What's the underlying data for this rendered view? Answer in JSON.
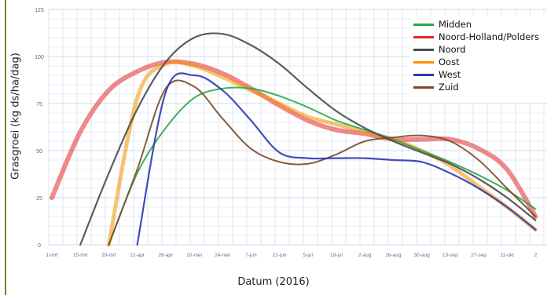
{
  "chart_data": {
    "type": "line",
    "title": "",
    "xlabel": "Datum (2016)",
    "ylabel": "Grasgroei (kg ds/ha/dag)",
    "ylim": [
      0,
      125
    ],
    "yticks": [
      0,
      25,
      50,
      75,
      100,
      125
    ],
    "categories": [
      "1-mrt",
      "15-mrt",
      "29-mrt",
      "12-apr",
      "26-apr",
      "10-mei",
      "24-mei",
      "7-jun",
      "21-jun",
      "5-jul",
      "19-jul",
      "2-aug",
      "16-aug",
      "30-aug",
      "13-sep",
      "27-sep",
      "11-okt",
      "2"
    ],
    "grid": true,
    "legend_position": "top-right",
    "series": [
      {
        "name": "Midden",
        "color": "#2aa84a",
        "values": [
          null,
          null,
          0,
          38,
          62,
          78,
          83,
          83,
          79,
          73,
          66,
          61,
          56,
          50,
          44,
          37,
          29,
          19
        ]
      },
      {
        "name": "Noord-Holland/Polders",
        "color": "#e2292b",
        "values": [
          25,
          60,
          82,
          92,
          97,
          96,
          91,
          83,
          74,
          66,
          61,
          59,
          56,
          56,
          56,
          51,
          40,
          15
        ]
      },
      {
        "name": "Noord",
        "color": "#4a4a4a",
        "values": [
          null,
          0,
          38,
          72,
          97,
          110,
          112,
          106,
          96,
          83,
          71,
          62,
          55,
          49,
          43,
          35,
          25,
          13
        ]
      },
      {
        "name": "Oost",
        "color": "#f39200",
        "values": [
          null,
          null,
          0,
          78,
          96,
          95,
          89,
          82,
          75,
          68,
          64,
          60,
          56,
          50,
          42,
          31,
          20,
          8
        ]
      },
      {
        "name": "West",
        "color": "#2c3ab0",
        "values": [
          null,
          null,
          null,
          0,
          81,
          90,
          82,
          66,
          49,
          46,
          46,
          46,
          45,
          44,
          38,
          30,
          20,
          8
        ]
      },
      {
        "name": "Zuid",
        "color": "#7a4a26",
        "values": [
          null,
          null,
          0,
          40,
          83,
          84,
          67,
          51,
          44,
          43,
          48,
          55,
          57,
          58,
          55,
          45,
          30,
          15
        ]
      }
    ]
  }
}
